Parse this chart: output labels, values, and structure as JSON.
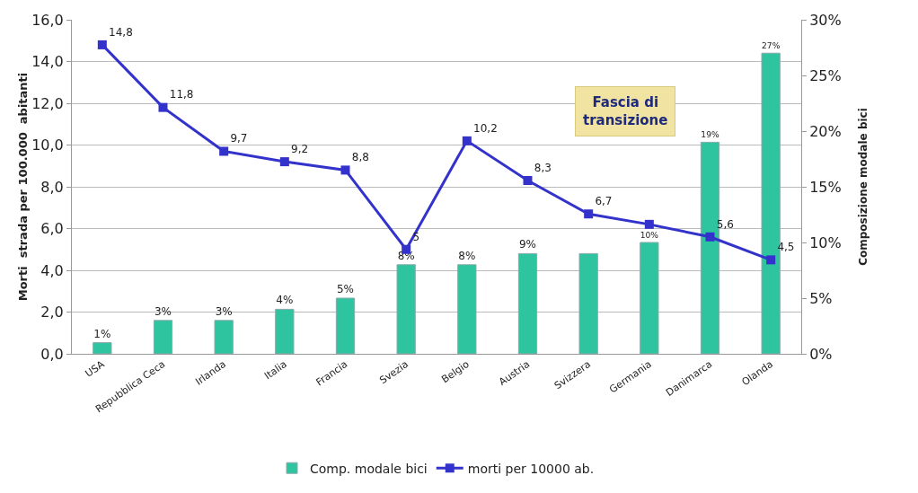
{
  "chart_data": {
    "type": "bar",
    "ylabel": "Morti  strada per 100.000  abitanti",
    "y2label": "Composizione modale bici",
    "categories": [
      "USA",
      "Repubblica Ceca",
      "Irlanda",
      "Italia",
      "Francia",
      "Svezia",
      "Belgio",
      "Austria",
      "Svizzera",
      "Germania",
      "Danimarca",
      "Olanda"
    ],
    "series": [
      {
        "name": "Comp. modale bici",
        "axis": "y2",
        "color": "#2ec4a0",
        "values": [
          1,
          3,
          3,
          4,
          5,
          8,
          8,
          9,
          9,
          10,
          19,
          27
        ],
        "value_labels": [
          "1%",
          "3%",
          "3%",
          "4%",
          "5%",
          "8%",
          "8%",
          "9%",
          null,
          "10%",
          "19%",
          "27%"
        ]
      },
      {
        "name": "morti per 10000 ab.",
        "type": "line",
        "color": "#3333cc",
        "values": [
          14.8,
          11.8,
          9.7,
          9.2,
          8.8,
          5,
          10.2,
          8.3,
          6.7,
          6.2,
          5.6,
          4.5
        ],
        "value_labels": [
          "14,8",
          "11,8",
          "9,7",
          "9,2",
          "8,8",
          "5",
          "10,2",
          "8,3",
          "6,7",
          null,
          "5,6",
          "4,5"
        ]
      }
    ],
    "annotations": [
      "Fascia di transizione"
    ],
    "ylim": [
      0,
      16
    ],
    "yticks": [
      {
        "value": 0,
        "label": "0,0"
      },
      {
        "value": 2,
        "label": "2,0"
      },
      {
        "value": 4,
        "label": "4,0"
      },
      {
        "value": 6,
        "label": "6,0"
      },
      {
        "value": 8,
        "label": "8,0"
      },
      {
        "value": 10,
        "label": "10,0"
      },
      {
        "value": 12,
        "label": "12,0"
      },
      {
        "value": 14,
        "label": "14,0"
      },
      {
        "value": 16,
        "label": "16,0"
      }
    ],
    "y2lim": [
      0,
      30
    ],
    "y2ticks": [
      {
        "value": 0,
        "label": "0%"
      },
      {
        "value": 5,
        "label": "5%"
      },
      {
        "value": 10,
        "label": "10%"
      },
      {
        "value": 15,
        "label": "15%"
      },
      {
        "value": 20,
        "label": "20%"
      },
      {
        "value": 25,
        "label": "25%"
      },
      {
        "value": 30,
        "label": "30%"
      }
    ],
    "grid": "y",
    "legend": "bottom",
    "marker": "square",
    "line_style": "solid"
  }
}
